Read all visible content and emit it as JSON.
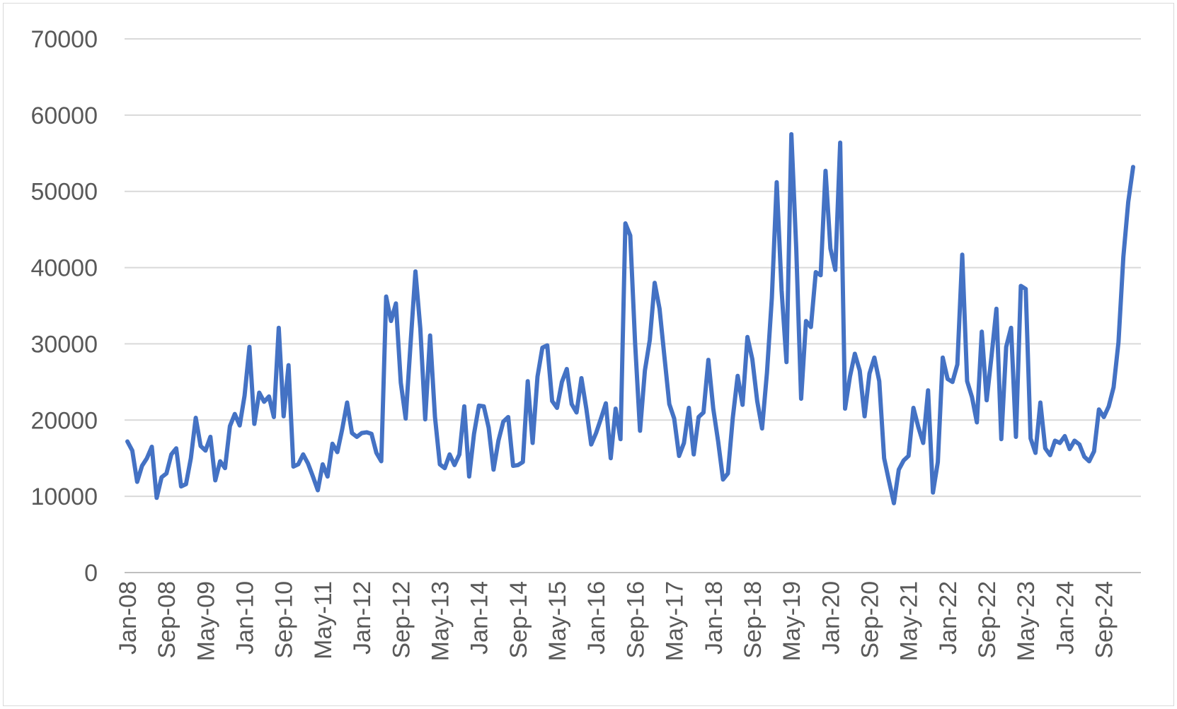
{
  "chart_data": {
    "type": "line",
    "title": "",
    "xlabel": "",
    "ylabel": "",
    "ylim": [
      0,
      70000
    ],
    "y_ticks": [
      0,
      10000,
      20000,
      30000,
      40000,
      50000,
      60000,
      70000
    ],
    "y_tick_labels": [
      "0",
      "10000",
      "20000",
      "30000",
      "40000",
      "50000",
      "60000",
      "70000"
    ],
    "x_start": "Jan-08",
    "x_end": "Jun-25",
    "x_tick_labels": [
      "Jan-08",
      "Sep-08",
      "May-09",
      "Jan-10",
      "Sep-10",
      "May-11",
      "Jan-12",
      "Sep-12",
      "May-13",
      "Jan-14",
      "Sep-14",
      "May-15",
      "Jan-16",
      "Sep-16",
      "May-17",
      "Jan-18",
      "Sep-18",
      "May-19",
      "Jan-20",
      "Sep-20",
      "May-21",
      "Jan-22",
      "Sep-22",
      "May-23",
      "Jan-24",
      "Sep-24"
    ],
    "grid": true,
    "legend": "none",
    "series": [
      {
        "color": "#4472c4",
        "values": [
          17200,
          16000,
          11900,
          14000,
          15000,
          16500,
          9800,
          12500,
          13000,
          15500,
          16300,
          11300,
          11600,
          15000,
          20300,
          16600,
          16000,
          17800,
          12100,
          14600,
          13700,
          19200,
          20800,
          19300,
          23200,
          29600,
          19500,
          23600,
          22400,
          23100,
          20400,
          32100,
          20500,
          27200,
          13900,
          14200,
          15500,
          14300,
          12600,
          10800,
          14200,
          12600,
          16900,
          15800,
          18800,
          22300,
          18300,
          17800,
          18300,
          18400,
          18200,
          15700,
          14600,
          36200,
          33000,
          35300,
          24900,
          20200,
          30000,
          39500,
          32000,
          20100,
          31100,
          20400,
          14200,
          13700,
          15500,
          14100,
          15500,
          21800,
          12600,
          18200,
          21900,
          21800,
          19000,
          13500,
          17300,
          19800,
          20400,
          14000,
          14100,
          14500,
          25100,
          17000,
          25700,
          29500,
          29800,
          22500,
          21600,
          25000,
          26700,
          22100,
          21000,
          25500,
          21500,
          16800,
          18300,
          20200,
          22200,
          15000,
          21500,
          17500,
          45800,
          44200,
          30000,
          18600,
          26500,
          30500,
          38000,
          34600,
          28300,
          22100,
          20200,
          15300,
          17000,
          21600,
          15500,
          20400,
          21000,
          27900,
          21500,
          17200,
          12200,
          13000,
          20300,
          25800,
          22000,
          30900,
          28000,
          22500,
          18900,
          26200,
          36000,
          51200,
          37000,
          27600,
          57500,
          42500,
          22800,
          33000,
          32200,
          39400,
          39000,
          52700,
          42500,
          39700,
          56400,
          21500,
          25700,
          28700,
          26500,
          20500,
          26100,
          28200,
          25100,
          15000,
          12000,
          9100,
          13500,
          14700,
          15300,
          21600,
          19100,
          17000,
          23900,
          10500,
          14500,
          28200,
          25400,
          25000,
          27300,
          41700,
          25100,
          23000,
          19700,
          31600,
          22600,
          28400,
          34600,
          17500,
          29600,
          32100,
          17800,
          37600,
          37200,
          17600,
          15700,
          22300,
          16300,
          15400,
          17300,
          17000,
          17900,
          16200,
          17300,
          16800,
          15200,
          14600,
          15900,
          21400,
          20400,
          21800,
          24300,
          30200,
          41400,
          48600,
          53200
        ]
      }
    ]
  }
}
